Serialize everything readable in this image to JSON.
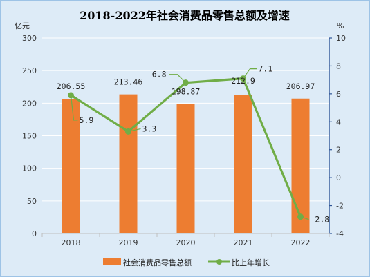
{
  "chart_data": {
    "type": "bar+line",
    "title": "2018-2022年社会消费品零售总额及增速",
    "y_left_unit": "亿元",
    "y_right_unit": "%",
    "categories": [
      "2018",
      "2019",
      "2020",
      "2021",
      "2022"
    ],
    "y_left_ticks": [
      "0",
      "50",
      "100",
      "150",
      "200",
      "250",
      "300"
    ],
    "y_right_ticks": [
      "-4",
      "-2",
      "0",
      "2",
      "4",
      "6",
      "8",
      "10"
    ],
    "y_left_range": [
      0,
      300
    ],
    "y_right_range": [
      -4,
      10
    ],
    "series": [
      {
        "name": "社会消费品零售总额",
        "type": "bar",
        "axis": "left",
        "color": "#ed7d31",
        "values": [
          206.55,
          213.46,
          198.87,
          212.9,
          206.97
        ],
        "labels": [
          "206.55",
          "213.46",
          "198.87",
          "212.9",
          "206.97"
        ]
      },
      {
        "name": "比上年增长",
        "type": "line",
        "axis": "right",
        "color": "#70ad47",
        "values": [
          5.9,
          3.3,
          6.8,
          7.1,
          -2.8
        ],
        "labels": [
          "5.9",
          "3.3",
          "6.8",
          "7.1",
          "-2.8"
        ]
      }
    ],
    "grid": true,
    "legend_position": "bottom"
  }
}
